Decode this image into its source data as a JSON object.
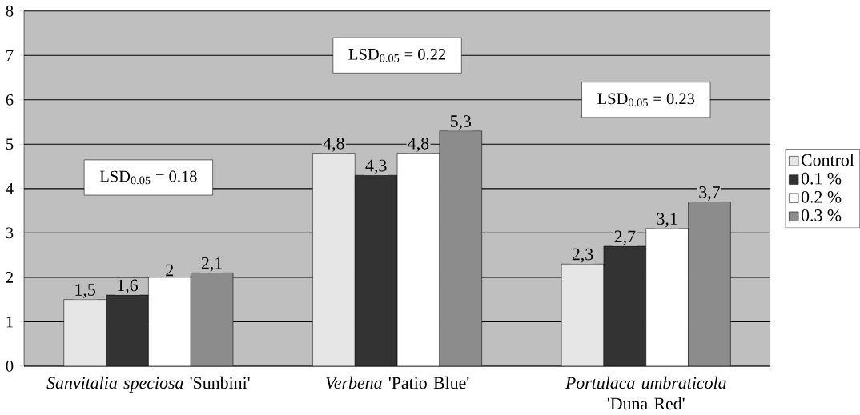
{
  "chart_data": {
    "type": "bar",
    "categories": [
      "*Sanvitalia speciosa* 'Sunbini'",
      "*Verbena* 'Patio Blue'",
      "*Portulaca umbraticola* 'Duna Red'"
    ],
    "series": [
      {
        "name": "Control",
        "color": "#e6e6e6",
        "values": [
          1.5,
          4.8,
          2.3
        ],
        "value_labels": [
          "1,5",
          "4,8",
          "2,3"
        ]
      },
      {
        "name": "0.1 %",
        "color": "#333333",
        "values": [
          1.6,
          4.3,
          2.7
        ],
        "value_labels": [
          "1,6",
          "4,3",
          "2,7"
        ]
      },
      {
        "name": "0.2 %",
        "color": "#ffffff",
        "values": [
          2,
          4.8,
          3.1
        ],
        "value_labels": [
          "2",
          "4,8",
          "3,1"
        ]
      },
      {
        "name": "0.3 %",
        "color": "#8c8c8c",
        "values": [
          2.1,
          5.3,
          3.7
        ],
        "value_labels": [
          "2,1",
          "5,3",
          "3,7"
        ]
      }
    ],
    "ylim": [
      0,
      8
    ],
    "yticks": [
      0,
      1,
      2,
      3,
      4,
      5,
      6,
      7,
      8
    ],
    "grid": "y",
    "legend": "right",
    "annotations": [
      "LSD$_{0.05}$ = 0.18",
      "LSD$_{0.05}$ = 0.22",
      "LSD$_{0.05}$ = 0.23"
    ]
  }
}
